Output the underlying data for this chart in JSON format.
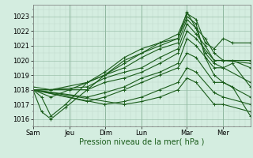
{
  "bg_color": "#d4ede0",
  "plot_bg_color": "#d4ede0",
  "line_color": "#1a5c1a",
  "marker": "+",
  "markersize": 3,
  "linewidth": 0.8,
  "ylim": [
    1015.5,
    1023.8
  ],
  "yticks": [
    1016,
    1017,
    1018,
    1019,
    1020,
    1021,
    1022,
    1023
  ],
  "xlabel": "Pression niveau de la mer( hPa )",
  "xlabel_fontsize": 7,
  "tick_fontsize": 6,
  "grid_color": "#90b8a0",
  "grid_minor_color": "#b8d4c4",
  "day_labels": [
    "Sam",
    "Jeu",
    "Dim",
    "Lun",
    "Mar",
    "Mer"
  ],
  "day_positions": [
    0,
    0.167,
    0.333,
    0.5,
    0.708,
    0.875
  ],
  "xlim": [
    0,
    1.0
  ],
  "series": [
    [
      0.0,
      1018.0,
      0.04,
      1017.5,
      0.083,
      1016.2,
      0.15,
      1017.0,
      0.25,
      1018.5,
      0.33,
      1019.2,
      0.42,
      1020.2,
      0.5,
      1020.8,
      0.583,
      1021.2,
      0.667,
      1021.8,
      0.708,
      1023.2,
      0.75,
      1022.8,
      0.792,
      1021.2,
      0.833,
      1020.8,
      0.875,
      1021.5,
      0.917,
      1021.2,
      1.0,
      1021.2
    ],
    [
      0.0,
      1018.0,
      0.04,
      1016.5,
      0.083,
      1016.0,
      0.15,
      1016.8,
      0.25,
      1018.0,
      0.33,
      1019.0,
      0.42,
      1020.0,
      0.5,
      1020.5,
      0.583,
      1021.0,
      0.667,
      1021.5,
      0.708,
      1023.0,
      0.75,
      1022.5,
      0.792,
      1020.2,
      0.833,
      1019.0,
      0.875,
      1018.5,
      0.917,
      1018.2,
      1.0,
      1016.2
    ],
    [
      0.0,
      1018.0,
      0.083,
      1017.5,
      0.167,
      1018.0,
      0.25,
      1018.5,
      0.33,
      1019.0,
      0.42,
      1019.8,
      0.5,
      1020.5,
      0.583,
      1021.2,
      0.667,
      1021.5,
      0.708,
      1023.3,
      0.75,
      1022.2,
      0.792,
      1020.5,
      0.833,
      1019.8,
      0.875,
      1019.5,
      0.917,
      1019.8,
      1.0,
      1018.2
    ],
    [
      0.0,
      1018.2,
      0.083,
      1018.0,
      0.25,
      1018.5,
      0.33,
      1019.0,
      0.42,
      1019.5,
      0.5,
      1020.2,
      0.583,
      1020.8,
      0.667,
      1021.2,
      0.708,
      1022.8,
      0.75,
      1022.2,
      0.792,
      1021.5,
      0.833,
      1020.5,
      0.875,
      1020.0,
      0.917,
      1020.0,
      1.0,
      1019.5
    ],
    [
      0.0,
      1018.0,
      0.083,
      1018.0,
      0.25,
      1018.2,
      0.33,
      1018.8,
      0.42,
      1019.2,
      0.5,
      1019.5,
      0.583,
      1020.2,
      0.667,
      1020.8,
      0.708,
      1022.5,
      0.75,
      1021.8,
      0.792,
      1021.0,
      0.833,
      1020.0,
      0.875,
      1020.0,
      1.0,
      1020.0
    ],
    [
      0.0,
      1018.0,
      0.25,
      1018.0,
      0.33,
      1018.5,
      0.42,
      1018.8,
      0.5,
      1019.2,
      0.583,
      1019.8,
      0.667,
      1020.5,
      0.708,
      1022.0,
      0.75,
      1021.5,
      0.833,
      1020.0,
      0.875,
      1020.0,
      1.0,
      1019.8
    ],
    [
      0.0,
      1018.0,
      0.25,
      1017.5,
      0.33,
      1017.8,
      0.42,
      1018.2,
      0.5,
      1018.8,
      0.583,
      1019.2,
      0.667,
      1019.8,
      0.708,
      1021.5,
      0.75,
      1021.0,
      0.833,
      1019.5,
      0.875,
      1019.5,
      1.0,
      1018.5
    ],
    [
      0.0,
      1018.0,
      0.25,
      1017.2,
      0.33,
      1017.5,
      0.42,
      1018.0,
      0.5,
      1018.5,
      0.583,
      1019.0,
      0.667,
      1019.5,
      0.708,
      1020.5,
      0.75,
      1020.2,
      0.833,
      1018.5,
      0.875,
      1018.5,
      1.0,
      1017.5
    ],
    [
      0.0,
      1018.0,
      0.33,
      1017.0,
      0.42,
      1017.2,
      0.5,
      1017.5,
      0.583,
      1018.0,
      0.667,
      1018.5,
      0.708,
      1019.5,
      0.75,
      1019.2,
      0.833,
      1017.8,
      0.875,
      1017.5,
      1.0,
      1017.0
    ],
    [
      0.0,
      1018.0,
      0.42,
      1017.0,
      0.5,
      1017.2,
      0.583,
      1017.5,
      0.667,
      1018.0,
      0.708,
      1018.8,
      0.75,
      1018.5,
      0.833,
      1017.0,
      0.875,
      1017.0,
      1.0,
      1016.5
    ]
  ]
}
